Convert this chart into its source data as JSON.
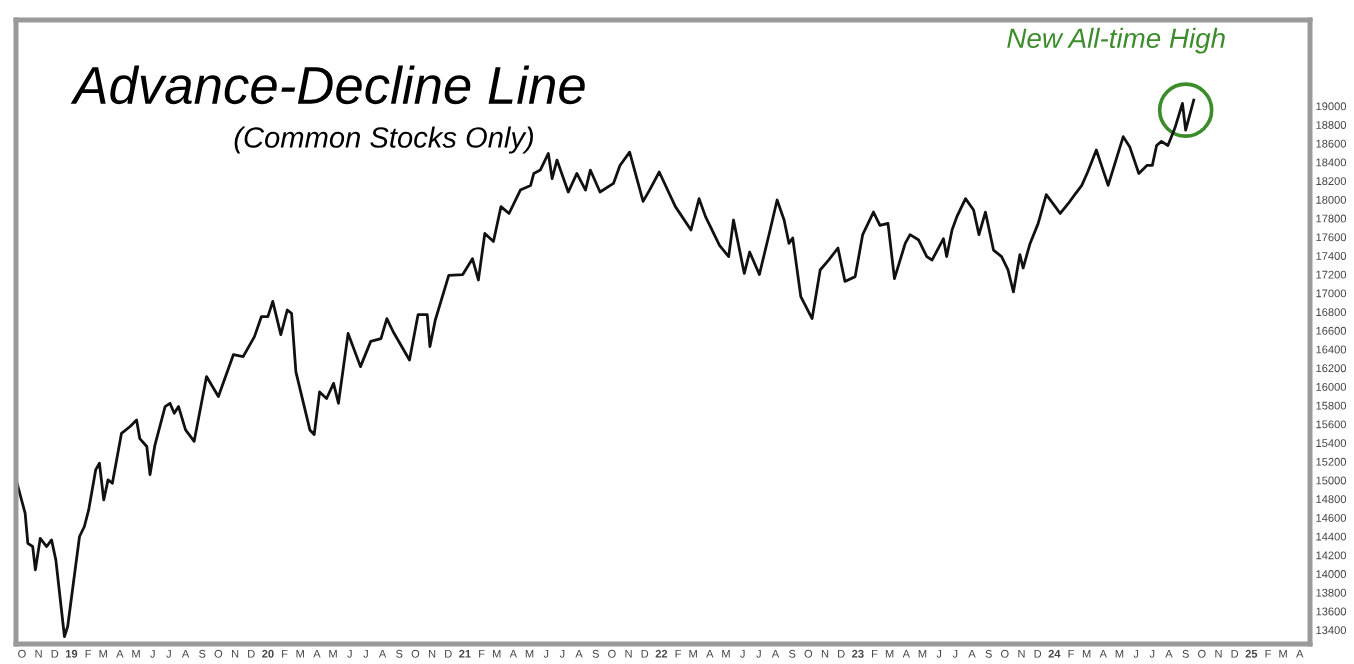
{
  "chart_data": {
    "type": "line",
    "title": "Advance-Decline Line",
    "subtitle": "(Common Stocks Only)",
    "annotations": [
      {
        "text": "New All-time High",
        "x": "2024-09-01",
        "y": 18957
      }
    ],
    "series": [
      {
        "color": "#111111",
        "x": [
          "2018-09-22",
          "2018-10-07",
          "2018-10-12",
          "2018-10-21",
          "2018-10-26",
          "2018-11-04",
          "2018-11-16",
          "2018-11-25",
          "2018-12-03",
          "2018-12-19",
          "2018-12-25",
          "2019-01-16",
          "2019-01-25",
          "2019-02-02",
          "2019-02-15",
          "2019-02-22",
          "2019-03-02",
          "2019-03-10",
          "2019-03-18",
          "2019-04-04",
          "2019-04-20",
          "2019-05-02",
          "2019-05-08",
          "2019-05-21",
          "2019-05-27",
          "2019-06-05",
          "2019-06-24",
          "2019-07-03",
          "2019-07-11",
          "2019-07-19",
          "2019-08-01",
          "2019-08-17",
          "2019-09-09",
          "2019-10-01",
          "2019-10-29",
          "2019-11-16",
          "2019-12-07",
          "2019-12-20",
          "2020-01-01",
          "2020-01-10",
          "2020-01-25",
          "2020-02-06",
          "2020-02-14",
          "2020-02-22",
          "2020-03-19",
          "2020-03-27",
          "2020-04-06",
          "2020-04-19",
          "2020-05-02",
          "2020-05-11",
          "2020-05-29",
          "2020-06-21",
          "2020-07-10",
          "2020-07-29",
          "2020-08-09",
          "2020-08-21",
          "2020-09-20",
          "2020-10-06",
          "2020-10-23",
          "2020-10-28",
          "2020-11-07",
          "2020-12-02",
          "2020-12-28",
          "2021-01-15",
          "2021-01-26",
          "2021-02-07",
          "2021-02-23",
          "2021-03-09",
          "2021-03-24",
          "2021-04-14",
          "2021-05-03",
          "2021-05-09",
          "2021-05-21",
          "2021-06-05",
          "2021-06-12",
          "2021-06-21",
          "2021-07-12",
          "2021-07-28",
          "2021-08-13",
          "2021-08-22",
          "2021-09-09",
          "2021-10-04",
          "2021-10-16",
          "2021-11-03",
          "2021-11-28",
          "2021-12-10",
          "2021-12-28",
          "2022-01-27",
          "2022-02-25",
          "2022-03-12",
          "2022-03-24",
          "2022-04-19",
          "2022-05-06",
          "2022-05-15",
          "2022-06-04",
          "2022-06-14",
          "2022-07-02",
          "2022-07-22",
          "2022-08-04",
          "2022-08-17",
          "2022-08-26",
          "2022-09-02",
          "2022-09-17",
          "2022-10-08",
          "2022-10-23",
          "2022-11-08",
          "2022-11-25",
          "2022-12-08",
          "2022-12-27",
          "2023-01-10",
          "2023-01-30",
          "2023-02-11",
          "2023-02-26",
          "2023-03-10",
          "2023-03-30",
          "2023-04-08",
          "2023-04-24",
          "2023-05-09",
          "2023-05-19",
          "2023-06-09",
          "2023-06-15",
          "2023-06-25",
          "2023-07-04",
          "2023-07-20",
          "2023-08-04",
          "2023-08-14",
          "2023-08-26",
          "2023-09-10",
          "2023-09-25",
          "2023-10-07",
          "2023-10-17",
          "2023-10-29",
          "2023-11-04",
          "2023-11-17",
          "2023-12-02",
          "2023-12-17",
          "2024-01-01",
          "2024-01-12",
          "2024-01-27",
          "2024-02-08",
          "2024-02-21",
          "2024-03-03",
          "2024-03-19",
          "2024-04-10",
          "2024-05-08",
          "2024-05-20",
          "2024-06-06",
          "2024-06-21",
          "2024-07-01",
          "2024-07-09",
          "2024-07-18",
          "2024-07-30",
          "2024-08-12",
          "2024-08-26",
          "2024-09-01",
          "2024-09-16"
        ],
        "values": [
          14968,
          14647,
          14326,
          14292,
          14042,
          14378,
          14292,
          14363,
          14149,
          13330,
          13437,
          14399,
          14506,
          14683,
          15111,
          15182,
          14790,
          15004,
          14968,
          15502,
          15575,
          15645,
          15446,
          15361,
          15061,
          15374,
          15788,
          15823,
          15716,
          15788,
          15538,
          15416,
          16109,
          15895,
          16344,
          16322,
          16536,
          16750,
          16750,
          16912,
          16557,
          16820,
          16784,
          16158,
          15538,
          15489,
          15944,
          15874,
          16036,
          15823,
          16570,
          16215,
          16485,
          16515,
          16728,
          16585,
          16286,
          16771,
          16771,
          16429,
          16713,
          17190,
          17199,
          17369,
          17141,
          17639,
          17553,
          17925,
          17852,
          18102,
          18152,
          18280,
          18316,
          18494,
          18224,
          18423,
          18081,
          18280,
          18102,
          18316,
          18081,
          18173,
          18365,
          18508,
          17981,
          18102,
          18295,
          17925,
          17675,
          18011,
          17818,
          17510,
          17391,
          17782,
          17211,
          17440,
          17199,
          17675,
          17996,
          17782,
          17532,
          17590,
          16963,
          16728,
          17248,
          17355,
          17483,
          17126,
          17177,
          17626,
          17867,
          17724,
          17746,
          17156,
          17532,
          17626,
          17568,
          17391,
          17355,
          17583,
          17391,
          17675,
          17818,
          18011,
          17889,
          17626,
          17867,
          17461,
          17391,
          17248,
          17013,
          17412,
          17269,
          17532,
          17746,
          18053,
          17938,
          17852,
          17959,
          18053,
          18152,
          18295,
          18530,
          18152,
          18673,
          18566,
          18280,
          18365,
          18365,
          18579,
          18622,
          18579,
          18765,
          19028,
          18744,
          19064
        ]
      }
    ],
    "xlim": [
      "2018-09-20",
      "2025-04-20"
    ],
    "ylim": [
      13250,
      19920
    ],
    "yticks": [
      13400,
      13600,
      13800,
      14000,
      14200,
      14400,
      14600,
      14800,
      15000,
      15200,
      15400,
      15600,
      15800,
      16000,
      16200,
      16400,
      16600,
      16800,
      17000,
      17200,
      17400,
      17600,
      17800,
      18000,
      18200,
      18400,
      18600,
      18800,
      19000
    ],
    "xticks": [
      {
        "value": "2018-10-01",
        "label": "O"
      },
      {
        "value": "2018-11-01",
        "label": "N"
      },
      {
        "value": "2018-12-01",
        "label": "D"
      },
      {
        "value": "2019-01-01",
        "label": "19"
      },
      {
        "value": "2019-02-01",
        "label": "F"
      },
      {
        "value": "2019-03-01",
        "label": "M"
      },
      {
        "value": "2019-04-01",
        "label": "A"
      },
      {
        "value": "2019-05-01",
        "label": "M"
      },
      {
        "value": "2019-06-01",
        "label": "J"
      },
      {
        "value": "2019-07-01",
        "label": "J"
      },
      {
        "value": "2019-08-01",
        "label": "A"
      },
      {
        "value": "2019-09-01",
        "label": "S"
      },
      {
        "value": "2019-10-01",
        "label": "O"
      },
      {
        "value": "2019-11-01",
        "label": "N"
      },
      {
        "value": "2019-12-01",
        "label": "D"
      },
      {
        "value": "2020-01-01",
        "label": "20"
      },
      {
        "value": "2020-02-01",
        "label": "F"
      },
      {
        "value": "2020-03-01",
        "label": "M"
      },
      {
        "value": "2020-04-01",
        "label": "A"
      },
      {
        "value": "2020-05-01",
        "label": "M"
      },
      {
        "value": "2020-06-01",
        "label": "J"
      },
      {
        "value": "2020-07-01",
        "label": "J"
      },
      {
        "value": "2020-08-01",
        "label": "A"
      },
      {
        "value": "2020-09-01",
        "label": "S"
      },
      {
        "value": "2020-10-01",
        "label": "O"
      },
      {
        "value": "2020-11-01",
        "label": "N"
      },
      {
        "value": "2020-12-01",
        "label": "D"
      },
      {
        "value": "2021-01-01",
        "label": "21"
      },
      {
        "value": "2021-02-01",
        "label": "F"
      },
      {
        "value": "2021-03-01",
        "label": "M"
      },
      {
        "value": "2021-04-01",
        "label": "A"
      },
      {
        "value": "2021-05-01",
        "label": "M"
      },
      {
        "value": "2021-06-01",
        "label": "J"
      },
      {
        "value": "2021-07-01",
        "label": "J"
      },
      {
        "value": "2021-08-01",
        "label": "A"
      },
      {
        "value": "2021-09-01",
        "label": "S"
      },
      {
        "value": "2021-10-01",
        "label": "O"
      },
      {
        "value": "2021-11-01",
        "label": "N"
      },
      {
        "value": "2021-12-01",
        "label": "D"
      },
      {
        "value": "2022-01-01",
        "label": "22"
      },
      {
        "value": "2022-02-01",
        "label": "F"
      },
      {
        "value": "2022-03-01",
        "label": "M"
      },
      {
        "value": "2022-04-01",
        "label": "A"
      },
      {
        "value": "2022-05-01",
        "label": "M"
      },
      {
        "value": "2022-06-01",
        "label": "J"
      },
      {
        "value": "2022-07-01",
        "label": "J"
      },
      {
        "value": "2022-08-01",
        "label": "A"
      },
      {
        "value": "2022-09-01",
        "label": "S"
      },
      {
        "value": "2022-10-01",
        "label": "O"
      },
      {
        "value": "2022-11-01",
        "label": "N"
      },
      {
        "value": "2022-12-01",
        "label": "D"
      },
      {
        "value": "2023-01-01",
        "label": "23"
      },
      {
        "value": "2023-02-01",
        "label": "F"
      },
      {
        "value": "2023-03-01",
        "label": "M"
      },
      {
        "value": "2023-04-01",
        "label": "A"
      },
      {
        "value": "2023-05-01",
        "label": "M"
      },
      {
        "value": "2023-06-01",
        "label": "J"
      },
      {
        "value": "2023-07-01",
        "label": "J"
      },
      {
        "value": "2023-08-01",
        "label": "A"
      },
      {
        "value": "2023-09-01",
        "label": "S"
      },
      {
        "value": "2023-10-01",
        "label": "O"
      },
      {
        "value": "2023-11-01",
        "label": "N"
      },
      {
        "value": "2023-12-01",
        "label": "D"
      },
      {
        "value": "2024-01-01",
        "label": "24"
      },
      {
        "value": "2024-02-01",
        "label": "F"
      },
      {
        "value": "2024-03-01",
        "label": "M"
      },
      {
        "value": "2024-04-01",
        "label": "A"
      },
      {
        "value": "2024-05-01",
        "label": "M"
      },
      {
        "value": "2024-06-01",
        "label": "J"
      },
      {
        "value": "2024-07-01",
        "label": "J"
      },
      {
        "value": "2024-08-01",
        "label": "A"
      },
      {
        "value": "2024-09-01",
        "label": "S"
      },
      {
        "value": "2024-10-01",
        "label": "O"
      },
      {
        "value": "2024-11-01",
        "label": "N"
      },
      {
        "value": "2024-12-01",
        "label": "D"
      },
      {
        "value": "2025-01-01",
        "label": "25"
      },
      {
        "value": "2025-02-01",
        "label": "F"
      },
      {
        "value": "2025-03-01",
        "label": "M"
      },
      {
        "value": "2025-04-01",
        "label": "A"
      }
    ],
    "grid": false,
    "legend": false,
    "marker": "none",
    "line_style": "solid"
  }
}
